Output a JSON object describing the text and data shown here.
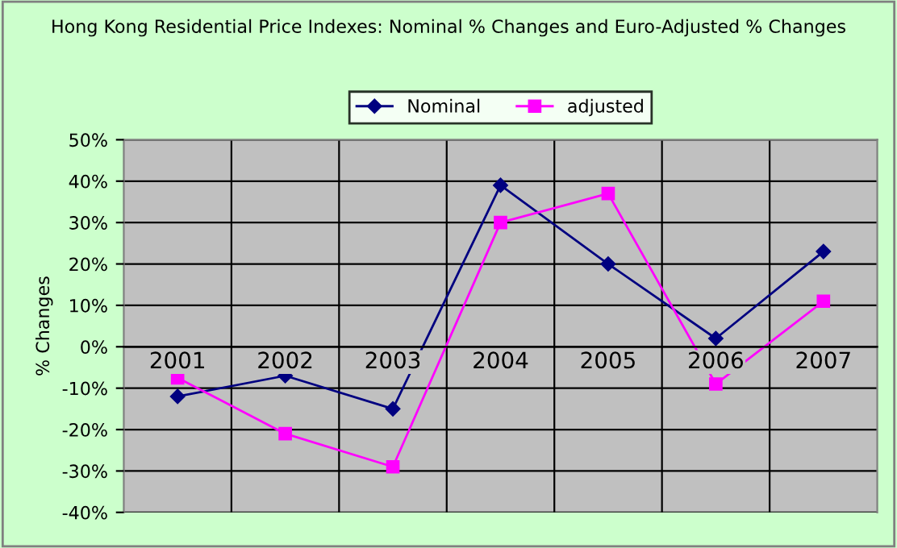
{
  "chart_data": {
    "type": "line",
    "title": "Hong Kong Residential Price Indexes: Nominal % Changes and Euro-Adjusted % Changes",
    "ylabel": "% Changes",
    "categories": [
      "2001",
      "2002",
      "2003",
      "2004",
      "2005",
      "2006",
      "2007"
    ],
    "series": [
      {
        "name": "Nominal",
        "color": "#000080",
        "marker": "diamond",
        "values": [
          -12,
          -7,
          -15,
          39,
          20,
          2,
          23
        ]
      },
      {
        "name": "adjusted",
        "color": "#ff00ff",
        "marker": "square",
        "values": [
          -7.5,
          -21,
          -29,
          30,
          37,
          -9,
          11
        ]
      }
    ],
    "ylim": [
      -40,
      50
    ],
    "yticks": [
      {
        "value": -40,
        "label": "-40%"
      },
      {
        "value": -30,
        "label": "-30%"
      },
      {
        "value": -20,
        "label": "-20%"
      },
      {
        "value": -10,
        "label": "-10%"
      },
      {
        "value": 0,
        "label": "0%"
      },
      {
        "value": 10,
        "label": "10%"
      },
      {
        "value": 20,
        "label": "20%"
      },
      {
        "value": 30,
        "label": "30%"
      },
      {
        "value": 40,
        "label": "40%"
      },
      {
        "value": 50,
        "label": "50%"
      }
    ],
    "grid": true,
    "legend": "top"
  }
}
